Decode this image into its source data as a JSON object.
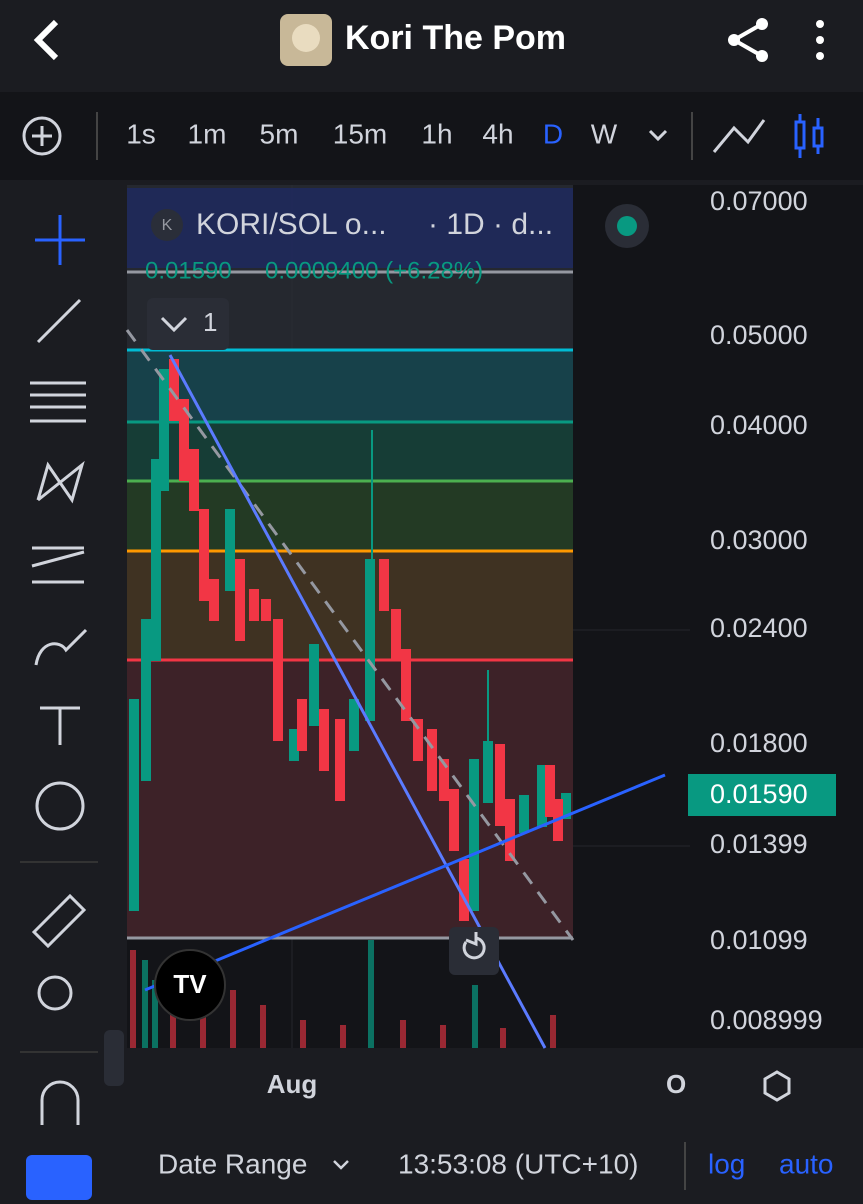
{
  "header": {
    "title": "Kori The Pom"
  },
  "toolbar": {
    "intervals": [
      "1s",
      "1m",
      "5m",
      "15m",
      "1h",
      "4h",
      "D",
      "W"
    ]
  },
  "legend": {
    "symbol": "KORI/SOL o...",
    "meta": "· 1D · d...",
    "price": "0.01590",
    "change": "0.0009400 (+6.28%)",
    "collapse_count": "1"
  },
  "price_axis": {
    "labels": [
      "0.07000",
      "0.05000",
      "0.04000",
      "0.03000",
      "0.02400",
      "0.01800",
      "0.01399",
      "0.01099",
      "0.008999"
    ],
    "current": "0.01590"
  },
  "time_axis": {
    "labels": [
      "Aug",
      "O"
    ]
  },
  "footer": {
    "date_range": "Date Range",
    "time": "13:53:08 (UTC+10)",
    "log": "log",
    "auto": "auto"
  }
}
